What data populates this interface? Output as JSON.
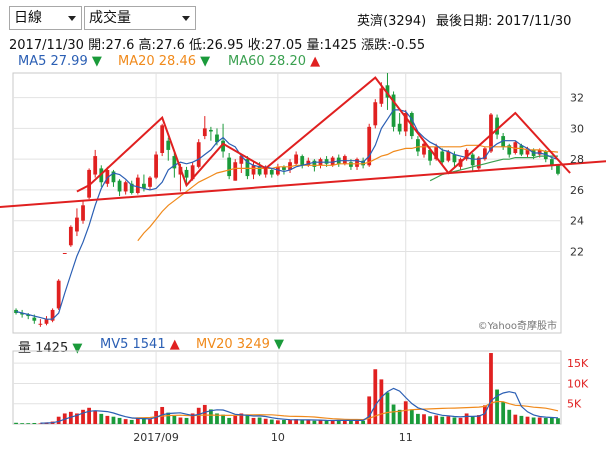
{
  "controls": {
    "period_select": "日線",
    "indicator_select": "成交量"
  },
  "header": {
    "stock": "英濟(3294)",
    "last_date_label": "最後日期: 2017/11/30"
  },
  "quote": {
    "date": "2017/11/30",
    "open": "開:27.6",
    "high": "高:27.6",
    "low": "低:26.95",
    "close": "收:27.05",
    "volume": "量:1425",
    "change": "漲跌:-0.55"
  },
  "ma_legend": [
    {
      "label": "MA5 27.99",
      "color": "#2b5fb4",
      "dir": "down"
    },
    {
      "label": "MA20 28.46",
      "color": "#f08a1c",
      "dir": "down"
    },
    {
      "label": "MA60 28.20",
      "color": "#3aa050",
      "dir": "up"
    }
  ],
  "vol_legend": [
    {
      "label": "量 1425",
      "color": "#222222",
      "dir": "down"
    },
    {
      "label": "MV5 1541",
      "color": "#2b5fb4",
      "dir": "up"
    },
    {
      "label": "MV20 3249",
      "color": "#f08a1c",
      "dir": "down"
    }
  ],
  "watermark": "©Yahoo奇摩股市",
  "chart_data": {
    "type": "candlestick",
    "price_axis": {
      "ticks": [
        22,
        24,
        26,
        28,
        30,
        32
      ],
      "labels": [
        "22",
        "24",
        "26",
        "28",
        "30",
        "32"
      ],
      "range": [
        16.7,
        33.6
      ]
    },
    "volume_axis": {
      "ticks": [
        5000,
        10000,
        15000
      ],
      "labels": [
        "5K",
        "10K",
        "15K"
      ],
      "range": [
        0,
        18000
      ]
    },
    "x_axis": {
      "labels": [
        {
          "text": "2017/09",
          "index": 23
        },
        {
          "text": "10",
          "index": 43
        },
        {
          "text": "11",
          "index": 64
        }
      ]
    },
    "colors": {
      "up": "#e02020",
      "down": "#1a9a3a",
      "ma5": "#2b5fb4",
      "ma20": "#f08a1c",
      "ma60": "#3aa050",
      "trend": "#e02020"
    },
    "candles": [
      [
        18.2,
        18.0,
        18.3,
        17.9
      ],
      [
        18.0,
        17.9,
        18.2,
        17.7
      ],
      [
        17.9,
        17.8,
        18.0,
        17.6
      ],
      [
        17.7,
        17.5,
        17.9,
        17.3
      ],
      [
        17.3,
        17.3,
        17.6,
        17.1
      ],
      [
        17.3,
        17.6,
        17.8,
        17.2
      ],
      [
        17.5,
        18.2,
        18.3,
        17.4
      ],
      [
        18.3,
        20.1,
        20.2,
        18.2
      ],
      [
        21.9,
        21.9,
        21.9,
        21.9
      ],
      [
        22.4,
        23.6,
        23.7,
        22.3
      ],
      [
        23.3,
        24.2,
        24.8,
        23.0
      ],
      [
        24.0,
        25.0,
        25.3,
        23.8
      ],
      [
        25.5,
        27.3,
        27.4,
        25.4
      ],
      [
        27.0,
        28.2,
        28.6,
        26.8
      ],
      [
        27.4,
        26.5,
        27.6,
        26.2
      ],
      [
        26.4,
        27.3,
        27.5,
        26.2
      ],
      [
        27.2,
        26.5,
        27.3,
        26.2
      ],
      [
        26.6,
        25.9,
        26.7,
        25.6
      ],
      [
        25.9,
        26.5,
        26.6,
        25.7
      ],
      [
        26.4,
        25.8,
        26.6,
        25.7
      ],
      [
        25.8,
        26.8,
        27.0,
        25.7
      ],
      [
        26.4,
        26.1,
        27.0,
        25.9
      ],
      [
        26.2,
        26.8,
        26.9,
        26.0
      ],
      [
        26.8,
        28.3,
        28.5,
        26.7
      ],
      [
        28.4,
        30.2,
        30.3,
        28.2
      ],
      [
        29.2,
        28.6,
        29.4,
        27.9
      ],
      [
        28.2,
        27.4,
        28.4,
        26.8
      ],
      [
        27.0,
        27.5,
        27.7,
        25.9
      ],
      [
        27.3,
        26.8,
        27.5,
        26.4
      ],
      [
        26.7,
        27.6,
        27.8,
        26.6
      ],
      [
        27.5,
        29.1,
        29.3,
        27.4
      ],
      [
        29.5,
        30.0,
        30.8,
        29.3
      ],
      [
        29.9,
        29.8,
        30.1,
        29.2
      ],
      [
        29.6,
        29.1,
        30.0,
        28.9
      ],
      [
        29.2,
        28.5,
        30.3,
        28.1
      ],
      [
        28.1,
        26.9,
        28.4,
        26.7
      ],
      [
        26.6,
        27.8,
        28.0,
        26.6
      ],
      [
        27.7,
        28.2,
        28.3,
        27.1
      ],
      [
        28.0,
        26.9,
        28.2,
        26.7
      ],
      [
        27.0,
        27.6,
        27.9,
        26.7
      ],
      [
        27.5,
        27.0,
        27.8,
        26.9
      ],
      [
        27.0,
        27.4,
        27.6,
        26.8
      ],
      [
        27.3,
        27.0,
        27.4,
        26.8
      ],
      [
        27.0,
        27.5,
        27.7,
        26.9
      ],
      [
        27.5,
        27.3,
        27.6,
        27.0
      ],
      [
        27.3,
        27.8,
        28.0,
        27.1
      ],
      [
        27.7,
        28.3,
        28.5,
        27.6
      ],
      [
        28.2,
        27.6,
        28.3,
        27.4
      ],
      [
        27.6,
        27.9,
        28.1,
        27.5
      ],
      [
        27.9,
        27.5,
        28.0,
        27.2
      ],
      [
        27.6,
        28.0,
        28.1,
        27.4
      ],
      [
        28.0,
        27.7,
        28.2,
        27.5
      ],
      [
        27.6,
        28.1,
        28.2,
        27.5
      ],
      [
        28.1,
        27.7,
        28.3,
        27.5
      ],
      [
        27.7,
        28.2,
        28.3,
        27.6
      ],
      [
        27.8,
        27.5,
        28.0,
        27.3
      ],
      [
        27.5,
        28.0,
        28.1,
        27.3
      ],
      [
        27.9,
        27.6,
        28.1,
        27.4
      ],
      [
        27.6,
        30.1,
        30.3,
        27.5
      ],
      [
        30.2,
        31.7,
        31.9,
        30.0
      ],
      [
        31.6,
        32.6,
        33.0,
        31.4
      ],
      [
        32.8,
        32.0,
        33.6,
        31.2
      ],
      [
        32.2,
        30.1,
        32.4,
        29.8
      ],
      [
        30.3,
        29.8,
        31.0,
        29.6
      ],
      [
        29.8,
        31.0,
        31.2,
        29.5
      ],
      [
        31.0,
        29.5,
        31.1,
        29.3
      ],
      [
        29.3,
        28.5,
        29.5,
        28.2
      ],
      [
        28.3,
        29.0,
        29.2,
        28.1
      ],
      [
        28.6,
        27.9,
        28.8,
        27.6
      ],
      [
        28.0,
        28.8,
        29.0,
        27.9
      ],
      [
        28.5,
        27.8,
        28.7,
        27.6
      ],
      [
        27.9,
        28.5,
        28.6,
        27.8
      ],
      [
        28.3,
        27.8,
        28.5,
        27.4
      ],
      [
        27.5,
        28.0,
        28.1,
        27.3
      ],
      [
        28.0,
        28.6,
        28.7,
        27.9
      ],
      [
        28.3,
        27.6,
        28.4,
        27.2
      ],
      [
        27.4,
        28.1,
        28.2,
        27.3
      ],
      [
        28.0,
        28.7,
        28.8,
        27.9
      ],
      [
        28.5,
        30.9,
        31.0,
        28.4
      ],
      [
        30.7,
        29.6,
        30.9,
        29.3
      ],
      [
        29.5,
        28.8,
        29.7,
        28.6
      ],
      [
        28.9,
        28.3,
        29.0,
        28.1
      ],
      [
        28.4,
        29.1,
        29.2,
        28.3
      ],
      [
        28.9,
        28.3,
        29.0,
        28.2
      ],
      [
        28.3,
        28.7,
        28.8,
        28.1
      ],
      [
        28.6,
        28.2,
        28.7,
        28.0
      ],
      [
        28.3,
        28.6,
        28.7,
        28.1
      ],
      [
        28.5,
        28.0,
        28.6,
        27.8
      ],
      [
        28.0,
        27.6,
        28.1,
        27.3
      ],
      [
        27.6,
        27.05,
        27.6,
        26.95
      ]
    ],
    "ma5": [
      18.1,
      18.0,
      17.9,
      17.8,
      17.7,
      17.6,
      17.6,
      18.0,
      19.3,
      20.5,
      21.7,
      22.6,
      23.7,
      25.0,
      26.1,
      26.8,
      27.1,
      27.0,
      26.7,
      26.3,
      26.2,
      26.1,
      26.0,
      26.1,
      26.5,
      27.3,
      27.6,
      27.8,
      27.7,
      27.8,
      28.0,
      28.3,
      28.6,
      29.1,
      29.4,
      29.0,
      28.8,
      28.2,
      27.8,
      27.6,
      27.5,
      27.5,
      27.4,
      27.3,
      27.2,
      27.3,
      27.5,
      27.6,
      27.7,
      27.8,
      27.8,
      27.8,
      27.8,
      27.9,
      27.9,
      27.9,
      27.9,
      27.8,
      28.2,
      28.9,
      30.0,
      30.6,
      31.2,
      31.2,
      31.1,
      30.6,
      29.8,
      29.4,
      29.1,
      28.9,
      28.6,
      28.5,
      28.3,
      28.2,
      28.1,
      28.0,
      28.0,
      28.1,
      28.7,
      29.0,
      29.2,
      29.2,
      29.2,
      28.9,
      28.7,
      28.4,
      28.4,
      28.3,
      28.1,
      27.99
    ],
    "ma20": [
      null,
      null,
      null,
      null,
      null,
      null,
      null,
      null,
      null,
      null,
      null,
      null,
      null,
      null,
      null,
      null,
      null,
      null,
      null,
      null,
      22.7,
      23.2,
      23.6,
      24.1,
      24.6,
      25.0,
      25.3,
      25.6,
      25.9,
      26.2,
      26.5,
      26.7,
      26.9,
      27.1,
      27.2,
      27.3,
      27.4,
      27.4,
      27.4,
      27.4,
      27.4,
      27.4,
      27.4,
      27.5,
      27.5,
      27.5,
      27.6,
      27.6,
      27.6,
      27.6,
      27.6,
      27.6,
      27.6,
      27.7,
      27.7,
      27.7,
      27.7,
      27.7,
      27.8,
      28.0,
      28.2,
      28.3,
      28.5,
      28.6,
      28.7,
      28.7,
      28.8,
      28.8,
      28.8,
      28.8,
      28.8,
      28.8,
      28.8,
      28.8,
      28.9,
      28.9,
      28.9,
      28.8,
      28.8,
      28.8,
      28.8,
      28.8,
      28.7,
      28.7,
      28.6,
      28.6,
      28.6,
      28.5,
      28.5,
      28.46
    ],
    "ma60": [
      null,
      null,
      null,
      null,
      null,
      null,
      null,
      null,
      null,
      null,
      null,
      null,
      null,
      null,
      null,
      null,
      null,
      null,
      null,
      null,
      null,
      null,
      null,
      null,
      null,
      null,
      null,
      null,
      null,
      null,
      null,
      null,
      null,
      null,
      null,
      null,
      null,
      null,
      null,
      null,
      null,
      null,
      null,
      null,
      null,
      null,
      null,
      null,
      null,
      null,
      null,
      null,
      null,
      null,
      null,
      null,
      null,
      null,
      null,
      null,
      null,
      null,
      null,
      null,
      null,
      null,
      null,
      null,
      26.6,
      26.8,
      27.0,
      27.1,
      27.2,
      27.3,
      27.4,
      27.5,
      27.6,
      27.7,
      27.8,
      27.9,
      28.0,
      28.0,
      28.1,
      28.1,
      28.1,
      28.1,
      28.2,
      28.2,
      28.2,
      28.2
    ],
    "volume": [
      300,
      200,
      200,
      250,
      150,
      400,
      600,
      1800,
      2600,
      3000,
      2600,
      3500,
      4000,
      3300,
      2500,
      2000,
      1800,
      1500,
      1200,
      1000,
      1400,
      1500,
      1200,
      3200,
      4200,
      2800,
      2000,
      1600,
      1500,
      2600,
      4000,
      4700,
      3600,
      2600,
      2300,
      1500,
      2000,
      2600,
      2300,
      1500,
      1600,
      1300,
      1100,
      900,
      1000,
      1000,
      1200,
      1000,
      900,
      800,
      900,
      800,
      900,
      1000,
      900,
      800,
      900,
      800,
      6800,
      13500,
      11000,
      7800,
      4800,
      3500,
      5600,
      3600,
      2500,
      2400,
      1900,
      2100,
      1800,
      1900,
      1600,
      1500,
      2600,
      1800,
      2200,
      4600,
      17500,
      8500,
      5400,
      3500,
      2300,
      2000,
      1800,
      1600,
      1600,
      1500,
      1500,
      1425
    ],
    "mv5": [
      null,
      null,
      null,
      null,
      220,
      240,
      320,
      640,
      1190,
      1680,
      2120,
      2700,
      3140,
      3280,
      3180,
      3060,
      2720,
      2220,
      1800,
      1500,
      1380,
      1320,
      1260,
      1660,
      2260,
      2580,
      2680,
      2760,
      2420,
      2100,
      2340,
      2880,
      3280,
      3500,
      3440,
      2940,
      2400,
      2240,
      2140,
      1980,
      2000,
      1860,
      1560,
      1340,
      1180,
      1060,
      1040,
      1020,
      1020,
      980,
      960,
      880,
      860,
      880,
      900,
      880,
      880,
      880,
      1880,
      4600,
      6600,
      7980,
      8780,
      8120,
      6540,
      5060,
      4000,
      3520,
      2860,
      2500,
      2140,
      2020,
      1860,
      1760,
      1880,
      1880,
      1940,
      2540,
      5740,
      6920,
      7640,
      7960,
      7640,
      4340,
      3000,
      2240,
      1860,
      1700,
      1600,
      1541
    ],
    "mv20": [
      null,
      null,
      null,
      null,
      null,
      null,
      null,
      null,
      null,
      null,
      null,
      null,
      null,
      null,
      null,
      null,
      null,
      null,
      null,
      1440,
      1500,
      1560,
      1610,
      1750,
      1950,
      2070,
      2140,
      2160,
      2100,
      2080,
      2150,
      2210,
      2190,
      2160,
      2150,
      2130,
      2140,
      2190,
      2250,
      2280,
      2290,
      2280,
      2270,
      2150,
      2000,
      1910,
      1870,
      1840,
      1810,
      1720,
      1570,
      1430,
      1310,
      1230,
      1160,
      1120,
      1100,
      1090,
      1380,
      2000,
      2500,
      2830,
      3010,
      3140,
      3380,
      3520,
      3600,
      3680,
      3730,
      3800,
      3850,
      3900,
      3930,
      3960,
      4040,
      4090,
      4160,
      4350,
      5180,
      5560,
      5500,
      5010,
      4620,
      4540,
      4370,
      4150,
      4040,
      3900,
      3600,
      3249
    ],
    "trendlines": [
      {
        "name": "neckline",
        "points": [
          [
            -9,
            24.7
          ],
          [
            98,
            27.9
          ]
        ]
      },
      {
        "name": "pattern",
        "points": [
          [
            10,
            25.9
          ],
          [
            12,
            26.3
          ],
          [
            24,
            30.7
          ],
          [
            28,
            26.3
          ],
          [
            34,
            29.0
          ],
          [
            41,
            27.4
          ],
          [
            59,
            33.3
          ],
          [
            71,
            27.1
          ],
          [
            82,
            31.0
          ],
          [
            91,
            27.1
          ]
        ]
      }
    ]
  }
}
